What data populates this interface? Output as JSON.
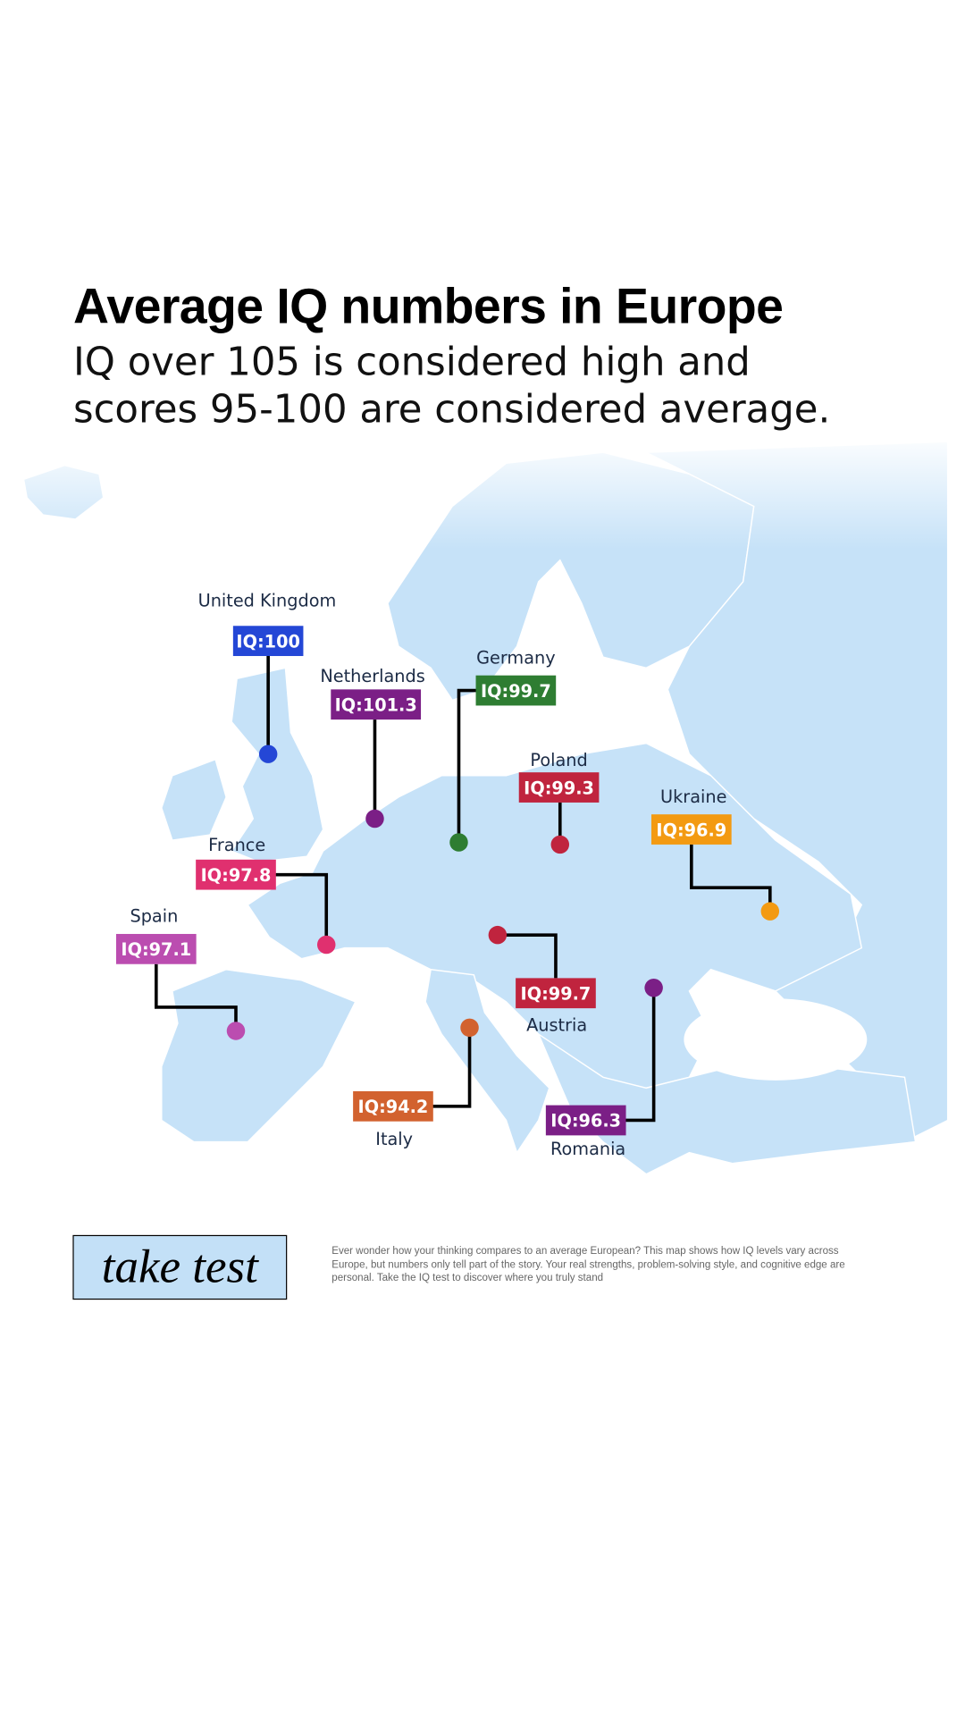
{
  "header": {
    "title": "Average IQ numbers in Europe",
    "subtitle_lines": [
      "IQ over 105 is considered high and",
      "scores 95-100 are considered average."
    ]
  },
  "markers": [
    {
      "country": "United Kingdom",
      "label": "IQ:100",
      "color": "#2447d6"
    },
    {
      "country": "Netherlands",
      "label": "IQ:101.3",
      "color": "#7b1f86"
    },
    {
      "country": "Germany",
      "label": "IQ:99.7",
      "color": "#2e7d32"
    },
    {
      "country": "Poland",
      "label": "IQ:99.3",
      "color": "#c0243e"
    },
    {
      "country": "Ukraine",
      "label": "IQ:96.9",
      "color": "#f39a12"
    },
    {
      "country": "France",
      "label": "IQ:97.8",
      "color": "#e0306f"
    },
    {
      "country": "Spain",
      "label": "IQ:97.1",
      "color": "#bb4db0"
    },
    {
      "country": "Austria",
      "label": "IQ:99.7",
      "color": "#c0243e"
    },
    {
      "country": "Italy",
      "label": "IQ:94.2",
      "color": "#d2622f"
    },
    {
      "country": "Romania",
      "label": "IQ:96.3",
      "color": "#7b1f86"
    }
  ],
  "footer": {
    "button": "take test",
    "text": "Ever wonder how your thinking compares to an average European? This map shows how IQ levels vary across Europe, but numbers only tell part of the story. Your real strengths, problem-solving style, and cognitive edge are personal. Take the IQ test to discover where you truly stand"
  }
}
